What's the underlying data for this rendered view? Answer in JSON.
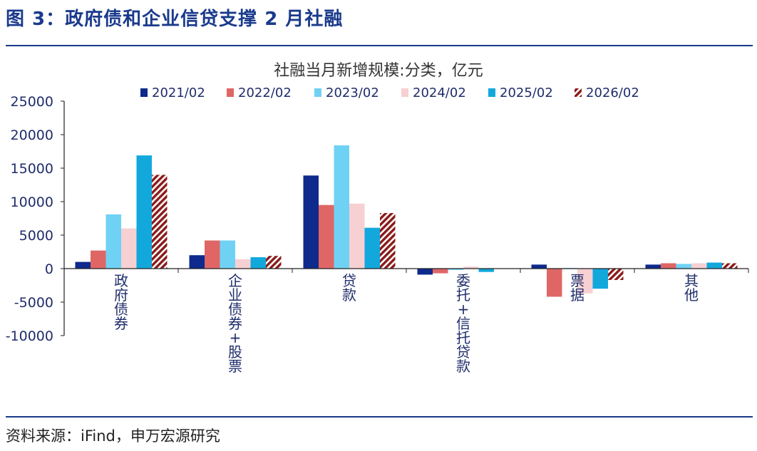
{
  "figure": {
    "title": "图 3：政府债和企业信贷支撑 2 月社融",
    "source": "资料来源：iFind，申万宏源研究"
  },
  "chart_data": {
    "type": "bar",
    "title": "社融当月新增规模:分类，亿元",
    "categories": [
      "政府债券",
      "企业债券+股票",
      "贷款",
      "委托+信托贷款",
      "票据",
      "其他"
    ],
    "series": [
      {
        "name": "2021/02",
        "color": "#0d2a8c",
        "pattern": false,
        "values": [
          1000,
          2000,
          13900,
          -900,
          600,
          600
        ]
      },
      {
        "name": "2022/02",
        "color": "#e06666",
        "pattern": false,
        "values": [
          2700,
          4200,
          9500,
          -700,
          -4200,
          800
        ]
      },
      {
        "name": "2023/02",
        "color": "#6fd2f5",
        "pattern": false,
        "values": [
          8100,
          4200,
          18400,
          -200,
          100,
          700
        ]
      },
      {
        "name": "2024/02",
        "color": "#f6d0d2",
        "pattern": false,
        "values": [
          6000,
          1400,
          9700,
          300,
          -3700,
          800
        ]
      },
      {
        "name": "2025/02",
        "color": "#12a8dc",
        "pattern": false,
        "values": [
          16900,
          1700,
          6100,
          -500,
          -3000,
          900
        ]
      },
      {
        "name": "2026/02",
        "color": "#8b1a1a",
        "pattern": true,
        "values": [
          14000,
          1900,
          8300,
          0,
          -1700,
          800
        ]
      }
    ],
    "ylim": [
      -10000,
      25000
    ],
    "yticks": [
      "25000",
      "20000",
      "15000",
      "10000",
      "5000",
      "0",
      "-5000",
      "-10000"
    ],
    "xlabel": "",
    "ylabel": "",
    "legend": "top",
    "grid": false
  }
}
